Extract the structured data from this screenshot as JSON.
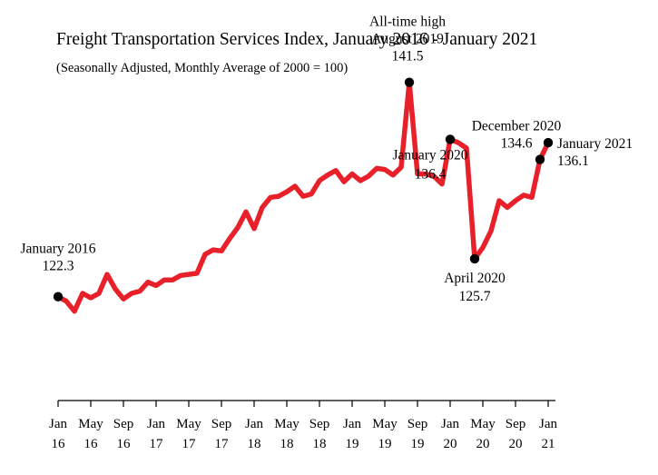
{
  "chart_data": {
    "type": "line",
    "title": "Freight Transportation Services Index, January 2016 - January 2021",
    "subtitle": "(Seasonally Adjusted, Monthly Average of 2000 = 100)",
    "xlabel": "",
    "ylabel": "",
    "ylim": [
      113,
      144
    ],
    "grid": false,
    "line_color": "#e8202a",
    "x": [
      "2016-01",
      "2016-02",
      "2016-03",
      "2016-04",
      "2016-05",
      "2016-06",
      "2016-07",
      "2016-08",
      "2016-09",
      "2016-10",
      "2016-11",
      "2016-12",
      "2017-01",
      "2017-02",
      "2017-03",
      "2017-04",
      "2017-05",
      "2017-06",
      "2017-07",
      "2017-08",
      "2017-09",
      "2017-10",
      "2017-11",
      "2017-12",
      "2018-01",
      "2018-02",
      "2018-03",
      "2018-04",
      "2018-05",
      "2018-06",
      "2018-07",
      "2018-08",
      "2018-09",
      "2018-10",
      "2018-11",
      "2018-12",
      "2019-01",
      "2019-02",
      "2019-03",
      "2019-04",
      "2019-05",
      "2019-06",
      "2019-07",
      "2019-08",
      "2019-09",
      "2019-10",
      "2019-11",
      "2019-12",
      "2020-01",
      "2020-02",
      "2020-03",
      "2020-04",
      "2020-05",
      "2020-06",
      "2020-07",
      "2020-08",
      "2020-09",
      "2020-10",
      "2020-11",
      "2020-12",
      "2021-01"
    ],
    "series": [
      {
        "values": [
          122.3,
          121.9,
          121.0,
          122.6,
          122.2,
          122.6,
          124.3,
          123.0,
          122.1,
          122.6,
          122.8,
          123.6,
          123.3,
          123.8,
          123.8,
          124.2,
          124.3,
          124.4,
          126.1,
          126.5,
          126.4,
          127.5,
          128.5,
          129.9,
          128.4,
          130.3,
          131.2,
          131.3,
          131.7,
          132.2,
          131.3,
          131.5,
          132.7,
          133.2,
          133.6,
          132.6,
          133.3,
          132.7,
          133.1,
          133.8,
          133.7,
          133.2,
          133.9,
          141.5,
          133.3,
          133.3,
          133.1,
          132.4,
          136.4,
          136.1,
          135.6,
          125.7,
          126.7,
          128.2,
          130.9,
          130.3,
          130.9,
          131.4,
          131.2,
          134.6,
          136.1
        ]
      }
    ],
    "x_ticks": [
      {
        "m": "Jan",
        "y": "16"
      },
      {
        "m": "May",
        "y": "16"
      },
      {
        "m": "Sep",
        "y": "16"
      },
      {
        "m": "Jan",
        "y": "17"
      },
      {
        "m": "May",
        "y": "17"
      },
      {
        "m": "Sep",
        "y": "17"
      },
      {
        "m": "Jan",
        "y": "18"
      },
      {
        "m": "May",
        "y": "18"
      },
      {
        "m": "Sep",
        "y": "18"
      },
      {
        "m": "Jan",
        "y": "19"
      },
      {
        "m": "May",
        "y": "19"
      },
      {
        "m": "Sep",
        "y": "19"
      },
      {
        "m": "Jan",
        "y": "20"
      },
      {
        "m": "May",
        "y": "20"
      },
      {
        "m": "Sep",
        "y": "20"
      },
      {
        "m": "Jan",
        "y": "21"
      }
    ],
    "annotations": [
      {
        "index": 0,
        "lines": [
          "January 2016",
          "122.3"
        ]
      },
      {
        "index": 43,
        "lines": [
          "All-time high",
          "August 2019",
          "141.5"
        ]
      },
      {
        "index": 48,
        "lines": [
          "January 2020",
          "136.4"
        ]
      },
      {
        "index": 51,
        "lines": [
          "April 2020",
          "125.7"
        ]
      },
      {
        "index": 59,
        "lines": [
          "December 2020",
          "134.6"
        ]
      },
      {
        "index": 60,
        "lines": [
          "January 2021",
          "136.1"
        ]
      }
    ]
  }
}
